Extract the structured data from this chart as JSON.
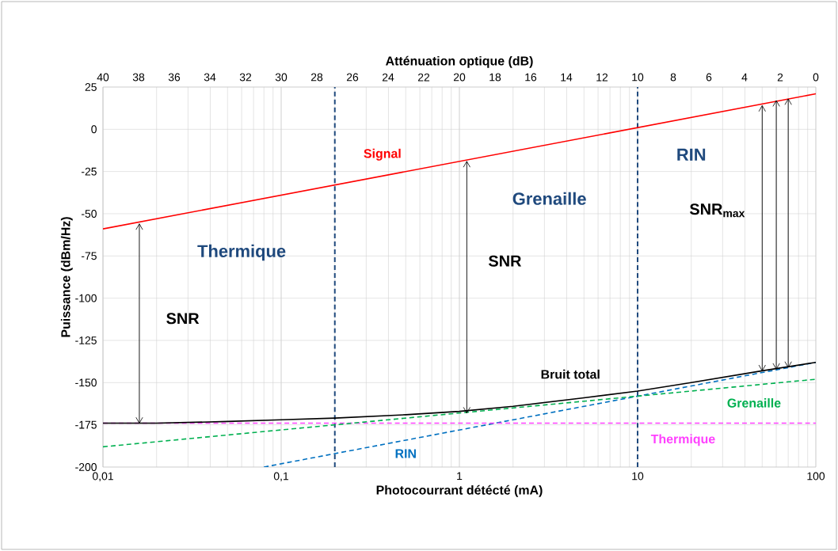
{
  "chart_data": {
    "type": "line",
    "xlabel": "Photocourrant détécté (mA)",
    "ylabel": "Puissance (dBm/Hz)",
    "x2label": "Atténuation optique (dB)",
    "log": "x",
    "xlim": [
      0.01,
      100
    ],
    "xticks": [
      {
        "value": 0.01,
        "label": "0,01"
      },
      {
        "value": 0.1,
        "label": "0,1"
      },
      1,
      10,
      100
    ],
    "x2lim": [
      40,
      0
    ],
    "x2ticks": [
      40,
      38,
      36,
      34,
      32,
      30,
      28,
      26,
      24,
      22,
      20,
      18,
      16,
      14,
      12,
      10,
      8,
      6,
      4,
      2,
      0
    ],
    "ylim": [
      -200,
      25
    ],
    "yticks": [
      -200,
      -175,
      -150,
      -125,
      -100,
      -75,
      -50,
      -25,
      0,
      25
    ],
    "grid": true,
    "marker": "none",
    "series": [
      {
        "name": "Signal",
        "color": "#ff0000",
        "line_style": "solid",
        "x": [
          0.01,
          100
        ],
        "values": [
          -59,
          21
        ]
      },
      {
        "name": "Bruit total",
        "color": "#000000",
        "line_style": "solid",
        "x": [
          0.01,
          0.02,
          0.05,
          0.1,
          0.2,
          0.5,
          1,
          2,
          5,
          10,
          20,
          50,
          100
        ],
        "values": [
          -174,
          -174,
          -173,
          -172,
          -171,
          -169,
          -167,
          -164,
          -159,
          -155,
          -150,
          -143,
          -138
        ]
      },
      {
        "name": "Grenaille",
        "color": "#00b050",
        "line_style": "dashed",
        "x": [
          0.01,
          100
        ],
        "values": [
          -188,
          -148
        ]
      },
      {
        "name": "Thermique",
        "color": "#ff40ff",
        "line_style": "dashed",
        "x": [
          0.01,
          100
        ],
        "values": [
          -174,
          -174
        ]
      },
      {
        "name": "RIN",
        "color": "#0070c0",
        "line_style": "dashed",
        "x": [
          0.08,
          100
        ],
        "values": [
          -200,
          -138
        ]
      }
    ],
    "ref_lines": [
      {
        "axis": "x",
        "value": 0.2,
        "color": "#1f497d",
        "line_style": "dashed"
      },
      {
        "axis": "x",
        "value": 10,
        "color": "#1f497d",
        "line_style": "dashed"
      }
    ],
    "annotations": [
      "Thermique",
      "Grenaille",
      "RIN",
      "SNR",
      "SNR",
      "SNR$_{max}$"
    ]
  }
}
